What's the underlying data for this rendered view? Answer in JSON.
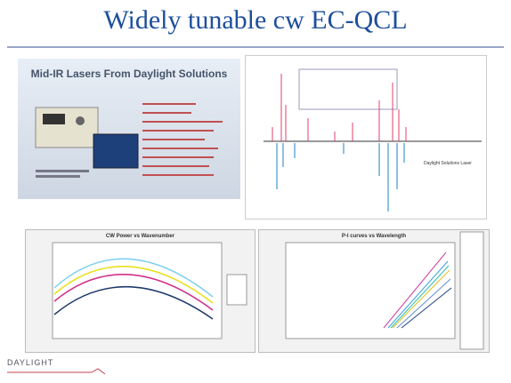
{
  "header": {
    "title": "Widely tunable cw EC-QCL"
  },
  "panels": [
    {
      "title": "Mid-IR Lasers From Daylight Solutions"
    },
    {
      "label": "Daylight Solutions Laser"
    },
    {
      "title": "CW Power vs Wavenumber"
    },
    {
      "title": "P-I curves vs Wavelength"
    }
  ],
  "footer": {
    "logo": "DAYLIGHT"
  }
}
